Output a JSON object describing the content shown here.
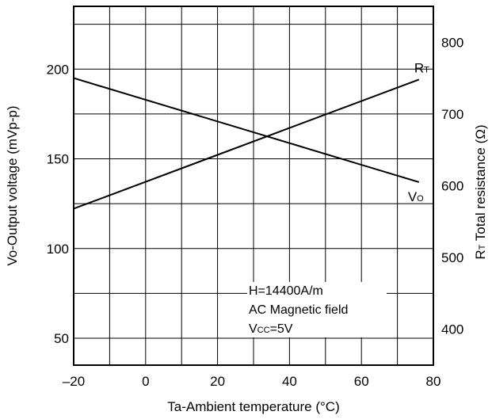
{
  "chart_data": {
    "type": "line",
    "xlabel": "Ta-Ambient temperature (°C)",
    "ylabel_left": "Vo-Output voltage (mVp-p)",
    "ylabel_right": {
      "main": "R",
      "sub": "T",
      "rest": " Total resistance (Ω)"
    },
    "xlim": [
      -20,
      80
    ],
    "ylim_left": [
      35,
      235
    ],
    "ylim_right": [
      350,
      850
    ],
    "grid": true,
    "x_ticks": [
      "–20",
      "0",
      "20",
      "40",
      "60",
      "80"
    ],
    "x_tick_values": [
      -20,
      0,
      20,
      40,
      60,
      80
    ],
    "y_left_ticks": [
      "50",
      "100",
      "150",
      "200"
    ],
    "y_left_tick_values": [
      50,
      100,
      150,
      200
    ],
    "y_right_ticks": [
      "400",
      "500",
      "600",
      "700",
      "800"
    ],
    "y_right_tick_values": [
      400,
      500,
      600,
      700,
      800
    ],
    "series": [
      {
        "name": "Vo",
        "label_main": "V",
        "label_sub": "O",
        "axis": "left",
        "x": [
          -20,
          76
        ],
        "y": [
          195,
          137
        ]
      },
      {
        "name": "RT",
        "label_main": "R",
        "label_sub": "T",
        "axis": "right",
        "x": [
          -20,
          76
        ],
        "y": [
          568,
          748
        ]
      }
    ],
    "annotation": {
      "line1": "H=14400A/m",
      "line2": "AC Magnetic field",
      "line3_main": "V",
      "line3_sub": "CC",
      "line3_rest": "=5V"
    }
  }
}
